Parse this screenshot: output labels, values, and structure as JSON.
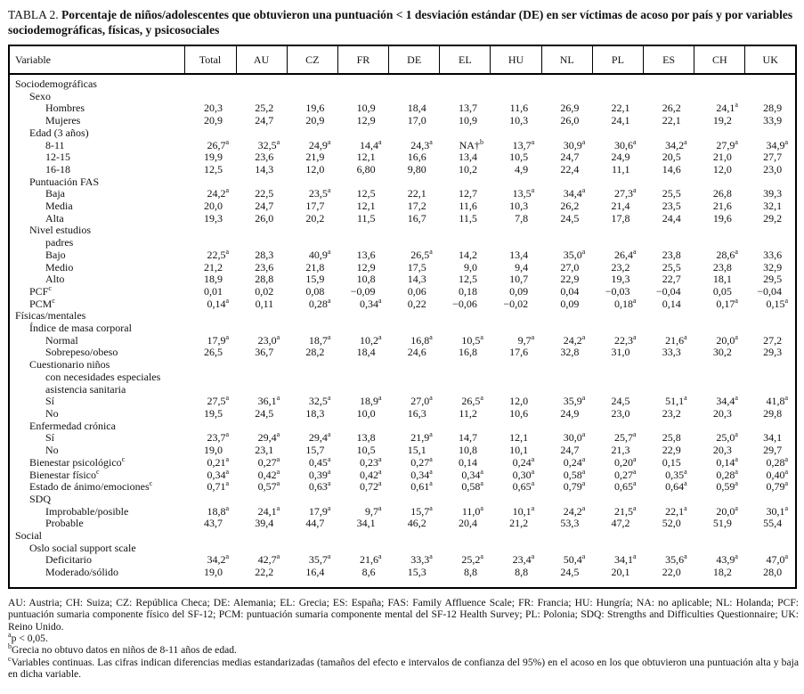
{
  "title": {
    "label": "TABLA 2.",
    "text": "Porcentaje de niños/adolescentes que obtuvieron una puntuación < 1 desviación estándar (DE) en ser víctimas de acoso por país y por variables sociodemográficas, físicas, y psicosociales"
  },
  "table": {
    "columns": [
      "Variable",
      "Total",
      "AU",
      "CZ",
      "FR",
      "DE",
      "EL",
      "HU",
      "NL",
      "PL",
      "ES",
      "CH",
      "UK"
    ],
    "rows": [
      {
        "label": "Sociodemográficas",
        "indent": 0,
        "values": []
      },
      {
        "label": "Sexo",
        "indent": 1,
        "values": []
      },
      {
        "label": "Hombres",
        "indent": 2,
        "values": [
          "20,3",
          "25,2",
          "19,6",
          "10,9",
          "18,4",
          "13,7",
          "11,6",
          "26,9",
          "22,1",
          "26,2",
          "24,1^a",
          "28,9"
        ]
      },
      {
        "label": "Mujeres",
        "indent": 2,
        "values": [
          "20,9",
          "24,7",
          "20,9",
          "12,9",
          "17,0",
          "10,9",
          "10,3",
          "26,0",
          "24,1",
          "22,1",
          "19,2",
          "33,9"
        ]
      },
      {
        "label": "Edad (3 años)",
        "indent": 1,
        "values": []
      },
      {
        "label": "8-11",
        "indent": 2,
        "values": [
          "26,7^a",
          "32,5^a",
          "24,9^a",
          "14,4^a",
          "24,3^a",
          "NA†^b",
          "13,7^a",
          "30,9^a",
          "30,6^a",
          "34,2^a",
          "27,9^a",
          "34,9^a"
        ]
      },
      {
        "label": "12-15",
        "indent": 2,
        "values": [
          "19,9",
          "23,6",
          "21,9",
          "12,1",
          "16,6",
          "13,4",
          "10,5",
          "24,7",
          "24,9",
          "20,5",
          "21,0",
          "27,7"
        ]
      },
      {
        "label": "16-18",
        "indent": 2,
        "values": [
          "12,5",
          "14,3",
          "12,0",
          "6,80",
          "9,80",
          "10,2",
          "4,9",
          "22,4",
          "11,1",
          "14,6",
          "12,0",
          "23,0"
        ]
      },
      {
        "label": "Puntuación FAS",
        "indent": 1,
        "values": []
      },
      {
        "label": "Baja",
        "indent": 2,
        "values": [
          "24,2^a",
          "22,5",
          "23,5^a",
          "12,5",
          "22,1",
          "12,7",
          "13,5^a",
          "34,4^a",
          "27,3^a",
          "25,5",
          "26,8",
          "39,3"
        ]
      },
      {
        "label": "Media",
        "indent": 2,
        "values": [
          "20,0",
          "24,7",
          "17,7",
          "12,1",
          "17,2",
          "11,6",
          "10,3",
          "26,2",
          "21,4",
          "23,5",
          "21,6",
          "32,1"
        ]
      },
      {
        "label": "Alta",
        "indent": 2,
        "values": [
          "19,3",
          "26,0",
          "20,2",
          "11,5",
          "16,7",
          "11,5",
          "7,8",
          "24,5",
          "17,8",
          "24,4",
          "19,6",
          "29,2"
        ]
      },
      {
        "label": "Nivel estudios",
        "indent": 1,
        "values": []
      },
      {
        "label": "padres",
        "indent": 2,
        "values": []
      },
      {
        "label": "Bajo",
        "indent": 2,
        "values": [
          "22,5^a",
          "28,3",
          "40,9^a",
          "13,6",
          "26,5^a",
          "14,2",
          "13,4",
          "35,0^a",
          "26,4^a",
          "23,8",
          "28,6^a",
          "33,6"
        ]
      },
      {
        "label": "Medio",
        "indent": 2,
        "values": [
          "21,2",
          "23,6",
          "21,8",
          "12,9",
          "17,5",
          "9,0",
          "9,4",
          "27,0",
          "23,2",
          "25,5",
          "23,8",
          "32,9"
        ]
      },
      {
        "label": "Alto",
        "indent": 2,
        "values": [
          "18,9",
          "28,8",
          "15,9",
          "10,8",
          "14,3",
          "12,5",
          "10,7",
          "22,9",
          "19,3",
          "22,7",
          "18,1",
          "29,5"
        ]
      },
      {
        "label": "PCF^c",
        "indent": 1,
        "values": [
          "0,01",
          "0,02",
          "0,08",
          "−0,09",
          "0,06",
          "0,18",
          "0,09",
          "0,04",
          "−0,03",
          "−0,04",
          "0,05",
          "−0,04"
        ]
      },
      {
        "label": "PCM^c",
        "indent": 1,
        "values": [
          "0,14^a",
          "0,11",
          "0,28^a",
          "0,34^a",
          "0,22",
          "−0,06",
          "−0,02",
          "0,09",
          "0,18^a",
          "0,14",
          "0,17^a",
          "0,15^a"
        ]
      },
      {
        "label": "Físicas/mentales",
        "indent": 0,
        "values": []
      },
      {
        "label": "Índice de masa corporal",
        "indent": 1,
        "values": []
      },
      {
        "label": "Normal",
        "indent": 2,
        "values": [
          "17,9^a",
          "23,0^a",
          "18,7^a",
          "10,2^a",
          "16,8^a",
          "10,5^a",
          "9,7^a",
          "24,2^a",
          "22,3^a",
          "21,6^a",
          "20,0^a",
          "27,2"
        ]
      },
      {
        "label": "Sobrepeso/obeso",
        "indent": 2,
        "values": [
          "26,5",
          "36,7",
          "28,2",
          "18,4",
          "24,6",
          "16,8",
          "17,6",
          "32,8",
          "31,0",
          "33,3",
          "30,2",
          "29,3"
        ]
      },
      {
        "label": "Cuestionario niños",
        "indent": 1,
        "values": []
      },
      {
        "label": "con necesidades especiales",
        "indent": 2,
        "values": []
      },
      {
        "label": "asistencia sanitaria",
        "indent": 2,
        "values": []
      },
      {
        "label": "Sí",
        "indent": 2,
        "values": [
          "27,5^a",
          "36,1^a",
          "32,5^a",
          "18,9^a",
          "27,0^a",
          "26,5^a",
          "12,0",
          "35,9^a",
          "24,5",
          "51,1^a",
          "34,4^a",
          "41,8^a"
        ]
      },
      {
        "label": "No",
        "indent": 2,
        "values": [
          "19,5",
          "24,5",
          "18,3",
          "10,0",
          "16,3",
          "11,2",
          "10,6",
          "24,9",
          "23,0",
          "23,2",
          "20,3",
          "29,8"
        ]
      },
      {
        "label": "Enfermedad crónica",
        "indent": 1,
        "values": []
      },
      {
        "label": "Sí",
        "indent": 2,
        "values": [
          "23,7^a",
          "29,4^a",
          "29,4^a",
          "13,8",
          "21,9^a",
          "14,7",
          "12,1",
          "30,0^a",
          "25,7^a",
          "25,8",
          "25,0^a",
          "34,1"
        ]
      },
      {
        "label": "No",
        "indent": 2,
        "values": [
          "19,0",
          "23,1",
          "15,7",
          "10,5",
          "15,1",
          "10,8",
          "10,1",
          "24,7",
          "21,3",
          "22,9",
          "20,3",
          "29,7"
        ]
      },
      {
        "label": "Bienestar psicológico^c",
        "indent": 1,
        "values": [
          "0,21^a",
          "0,27^a",
          "0,45^a",
          "0,23^a",
          "0,27^a",
          "0,14",
          "0,24^a",
          "0,24^a",
          "0,20^a",
          "0,15",
          "0,14^a",
          "0,28^a"
        ]
      },
      {
        "label": "Bienestar físico^c",
        "indent": 1,
        "values": [
          "0,34^a",
          "0,42^a",
          "0,39^a",
          "0,42^a",
          "0,34^a",
          "0,34^a",
          "0,30^a",
          "0,58^a",
          "0,27^a",
          "0,35^a",
          "0,28^a",
          "0,40^a"
        ]
      },
      {
        "label": "Estado de ánimo/emociones^c",
        "indent": 1,
        "values": [
          "0,71^a",
          "0,57^a",
          "0,63^a",
          "0,72^a",
          "0,61^a",
          "0,58^a",
          "0,65^a",
          "0,79^a",
          "0,65^a",
          "0,64^a",
          "0,59^a",
          "0,79^a"
        ]
      },
      {
        "label": "SDQ",
        "indent": 1,
        "values": []
      },
      {
        "label": "Improbable/posible",
        "indent": 2,
        "values": [
          "18,8^a",
          "24,1^a",
          "17,9^a",
          "9,7^a",
          "15,7^a",
          "11,0^a",
          "10,1^a",
          "24,2^a",
          "21,5^a",
          "22,1^a",
          "20,0^a",
          "30,1^a"
        ]
      },
      {
        "label": "Probable",
        "indent": 2,
        "values": [
          "43,7",
          "39,4",
          "44,7",
          "34,1",
          "46,2",
          "20,4",
          "21,2",
          "53,3",
          "47,2",
          "52,0",
          "51,9",
          "55,4"
        ]
      },
      {
        "label": "Social",
        "indent": 0,
        "values": []
      },
      {
        "label": "Oslo social support scale",
        "indent": 1,
        "values": []
      },
      {
        "label": "Deficitario",
        "indent": 2,
        "values": [
          "34,2^a",
          "42,7^a",
          "35,7^a",
          "21,6^a",
          "33,3^a",
          "25,2^a",
          "23,4^a",
          "50,4^a",
          "34,1^a",
          "35,6^a",
          "43,9^a",
          "47,0^a"
        ]
      },
      {
        "label": "Moderado/sólido",
        "indent": 2,
        "values": [
          "19,0",
          "22,2",
          "16,4",
          "8,6",
          "15,3",
          "8,8",
          "8,8",
          "24,5",
          "20,1",
          "22,0",
          "18,2",
          "28,0"
        ]
      }
    ]
  },
  "footnotes": [
    "AU: Austria; CH: Suiza; CZ: República Checa; DE: Alemania; EL: Grecia; ES: España; FAS: Family Affluence Scale; FR: Francia; HU: Hungría; NA: no aplicable; NL: Holanda; PCF: puntuación sumaria componente físico del SF-12; PCM: puntuación sumaria componente mental del SF-12 Health Survey; PL: Polonia; SDQ: Strengths and Difficulties Questionnaire; UK: Reino Unido.",
    "^ap < 0,05.",
    "^bGrecia no obtuvo datos en niños de 8-11 años de edad.",
    "^cVariables continuas. Las cifras indican diferencias medias estandarizadas (tamaños del efecto e intervalos de confianza del 95%) en el acoso en los que obtuvieron una puntuación alta y baja en dicha variable."
  ]
}
